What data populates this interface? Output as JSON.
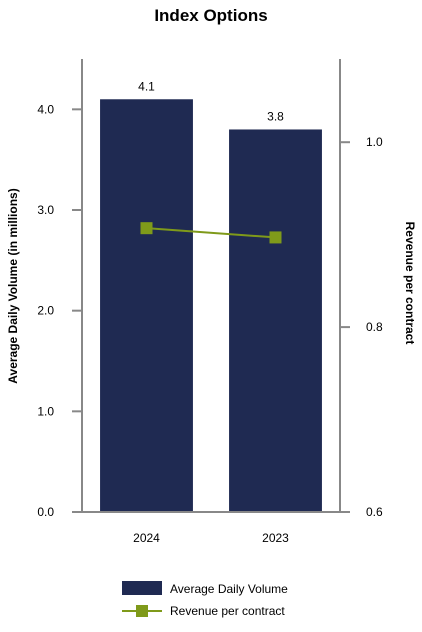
{
  "chart_data": {
    "type": "bar",
    "title": "Index Options",
    "categories": [
      "2024",
      "2023"
    ],
    "series": [
      {
        "name": "Average Daily Volume",
        "type": "bar",
        "axis": "left",
        "values": [
          4.1,
          3.8
        ],
        "data_labels": [
          "4.1",
          "3.8"
        ],
        "color": "#1f2a52"
      },
      {
        "name": "Revenue per contract",
        "type": "line",
        "axis": "right",
        "values": [
          0.907,
          0.897
        ],
        "color": "#7f9a1a"
      }
    ],
    "ylabel": "Average Daily Volume (in millions)",
    "ylim": [
      0,
      4.5
    ],
    "yticks": [
      0,
      1,
      2,
      3,
      4
    ],
    "ytick_labels": [
      "0.0",
      "1.0",
      "2.0",
      "3.0",
      "4.0"
    ],
    "y2label": "Revenue per contract",
    "y2lim": [
      0.6,
      1.09
    ],
    "y2ticks": [
      0.6,
      0.8,
      1.0
    ],
    "y2tick_labels": [
      "0.6",
      "0.8",
      "1.0"
    ],
    "grid": false,
    "legend": "bottom"
  }
}
